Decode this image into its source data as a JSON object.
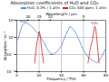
{
  "chart_data": {
    "type": "line",
    "title": "Absorption coefficients of H₂O and CO₂",
    "x_label": "Frequency / THz",
    "x2_label": "Wavelength / µm",
    "y_label": "Absorption / m⁻¹",
    "log": "y",
    "grid": true,
    "xlim": [
      0,
      80
    ],
    "xticks": [
      0,
      20,
      40,
      60,
      80
    ],
    "x2ticks": [
      {
        "value": 10,
        "label": "30"
      },
      {
        "value": 20,
        "label": "15"
      },
      {
        "value": 30,
        "label": "10"
      },
      {
        "value": 60,
        "label": "5"
      }
    ],
    "ylim": [
      0.001,
      1000
    ],
    "yticks": [
      {
        "value": 0.001,
        "label": "10⁻³"
      },
      {
        "value": 0.1,
        "label": "10⁻¹"
      },
      {
        "value": 10,
        "label": "10¹"
      },
      {
        "value": 1000,
        "label": "10³"
      }
    ],
    "series": [
      {
        "name": "H₂O, 0.3% / 1 atm",
        "color": "#5b8ed6",
        "x": [
          1,
          3,
          5,
          8,
          12,
          16,
          20,
          24,
          28,
          32,
          36,
          40,
          44,
          48,
          52,
          56,
          60,
          64,
          68,
          72,
          76,
          80
        ],
        "values": [
          5,
          50,
          300,
          500,
          300,
          80,
          20,
          3,
          0.3,
          0.1,
          0.2,
          1,
          20,
          200,
          60,
          5,
          0.3,
          0.05,
          0.02,
          0.01,
          0.05,
          0.5
        ]
      },
      {
        "name": "CO₂ 400 ppm, 1 atm",
        "color": "#d62728",
        "x": [
          16,
          18,
          20,
          21,
          22,
          24,
          28,
          30,
          32,
          34,
          64,
          66,
          68,
          70,
          71,
          72,
          74
        ],
        "values": [
          0.01,
          2,
          50,
          20,
          1,
          0.01,
          null,
          0.1,
          0.1,
          null,
          0.01,
          0.5,
          5,
          200,
          100,
          5,
          0.01
        ]
      }
    ],
    "annotations": [
      {
        "text": "H₂O",
        "x": 6,
        "y": 700
      },
      {
        "text": "CO₂",
        "x": 70,
        "y": 500
      }
    ]
  }
}
